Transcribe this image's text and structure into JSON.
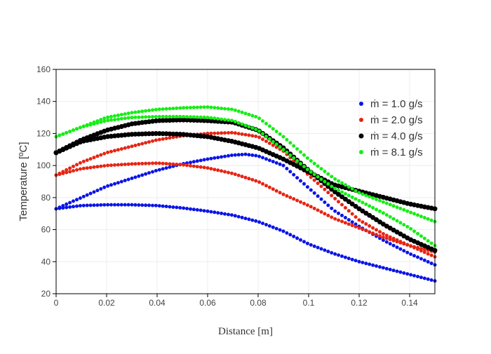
{
  "chart_data": {
    "type": "scatter",
    "title": "",
    "xlabel": "Distance [m]",
    "ylabel": "Temperature [ºC]",
    "xlim": [
      0,
      0.15
    ],
    "ylim": [
      20,
      160
    ],
    "x_ticks": [
      0,
      0.02,
      0.04,
      0.06,
      0.08,
      0.1,
      0.12,
      0.14
    ],
    "x_tick_labels": [
      "0",
      "0.02",
      "0.04",
      "0.06",
      "0.08",
      "0.1",
      "0.12",
      "0.14"
    ],
    "y_ticks": [
      20,
      40,
      60,
      80,
      100,
      120,
      140,
      160
    ],
    "y_tick_labels": [
      "20",
      "40",
      "60",
      "80",
      "100",
      "120",
      "140",
      "160"
    ],
    "grid": true,
    "legend_position": "top-right",
    "series": [
      {
        "name": "ṁ = 1.0 g/s",
        "color": "#0a14e6",
        "marker_size": 5,
        "curves": [
          [
            [
              0,
              73
            ],
            [
              0.01,
              75
            ],
            [
              0.02,
              75.5
            ],
            [
              0.03,
              75.5
            ],
            [
              0.04,
              75
            ],
            [
              0.05,
              73.5
            ],
            [
              0.06,
              71.5
            ],
            [
              0.07,
              69
            ],
            [
              0.08,
              65
            ],
            [
              0.09,
              59
            ],
            [
              0.1,
              51
            ],
            [
              0.11,
              45
            ],
            [
              0.12,
              40
            ],
            [
              0.13,
              36
            ],
            [
              0.14,
              32
            ],
            [
              0.15,
              28
            ]
          ],
          [
            [
              0,
              73
            ],
            [
              0.01,
              80
            ],
            [
              0.02,
              87
            ],
            [
              0.03,
              92
            ],
            [
              0.04,
              97
            ],
            [
              0.05,
              101
            ],
            [
              0.06,
              104
            ],
            [
              0.07,
              106.5
            ],
            [
              0.075,
              107
            ],
            [
              0.08,
              106
            ],
            [
              0.09,
              100
            ],
            [
              0.1,
              86
            ],
            [
              0.11,
              72
            ],
            [
              0.12,
              62
            ],
            [
              0.13,
              53
            ],
            [
              0.14,
              45
            ],
            [
              0.15,
              38
            ]
          ]
        ]
      },
      {
        "name": "ṁ = 2.0 g/s",
        "color": "#e62412",
        "marker_size": 5,
        "curves": [
          [
            [
              0,
              94
            ],
            [
              0.01,
              98
            ],
            [
              0.02,
              100
            ],
            [
              0.03,
              101
            ],
            [
              0.04,
              101.5
            ],
            [
              0.05,
              100.5
            ],
            [
              0.06,
              98.5
            ],
            [
              0.07,
              95
            ],
            [
              0.08,
              90
            ],
            [
              0.09,
              82
            ],
            [
              0.1,
              75
            ],
            [
              0.11,
              67
            ],
            [
              0.12,
              61
            ],
            [
              0.13,
              55
            ],
            [
              0.14,
              50
            ],
            [
              0.15,
              46
            ]
          ],
          [
            [
              0,
              94
            ],
            [
              0.01,
              102
            ],
            [
              0.02,
              108
            ],
            [
              0.03,
              112
            ],
            [
              0.04,
              116
            ],
            [
              0.05,
              118.5
            ],
            [
              0.06,
              120
            ],
            [
              0.07,
              120.5
            ],
            [
              0.08,
              118
            ],
            [
              0.09,
              109
            ],
            [
              0.1,
              94
            ],
            [
              0.11,
              80
            ],
            [
              0.12,
              66
            ],
            [
              0.13,
              57
            ],
            [
              0.14,
              50
            ],
            [
              0.15,
              43
            ]
          ]
        ]
      },
      {
        "name": "ṁ = 4.0 g/s",
        "color": "#000000",
        "marker_size": 7,
        "curves": [
          [
            [
              0,
              108
            ],
            [
              0.01,
              115
            ],
            [
              0.02,
              118
            ],
            [
              0.03,
              119.5
            ],
            [
              0.04,
              120
            ],
            [
              0.05,
              119.5
            ],
            [
              0.06,
              118
            ],
            [
              0.07,
              115
            ],
            [
              0.08,
              111
            ],
            [
              0.09,
              104
            ],
            [
              0.1,
              96
            ],
            [
              0.11,
              88
            ],
            [
              0.12,
              84
            ],
            [
              0.13,
              80
            ],
            [
              0.14,
              76
            ],
            [
              0.15,
              73
            ]
          ],
          [
            [
              0,
              108
            ],
            [
              0.01,
              116
            ],
            [
              0.02,
              122
            ],
            [
              0.03,
              126
            ],
            [
              0.04,
              128
            ],
            [
              0.05,
              128.5
            ],
            [
              0.06,
              128
            ],
            [
              0.07,
              127
            ],
            [
              0.08,
              122
            ],
            [
              0.09,
              111
            ],
            [
              0.1,
              97
            ],
            [
              0.11,
              84
            ],
            [
              0.12,
              73
            ],
            [
              0.13,
              63
            ],
            [
              0.14,
              54
            ],
            [
              0.15,
              47
            ]
          ]
        ]
      },
      {
        "name": "ṁ = 8.1 g/s",
        "color": "#14ee14",
        "marker_size": 5,
        "curves": [
          [
            [
              0,
              118
            ],
            [
              0.01,
              124
            ],
            [
              0.02,
              128
            ],
            [
              0.03,
              130
            ],
            [
              0.04,
              130.5
            ],
            [
              0.05,
              130.5
            ],
            [
              0.06,
              130
            ],
            [
              0.07,
              128
            ],
            [
              0.08,
              122
            ],
            [
              0.09,
              110
            ],
            [
              0.1,
              97
            ],
            [
              0.11,
              86
            ],
            [
              0.12,
              78
            ],
            [
              0.13,
              70
            ],
            [
              0.14,
              61
            ],
            [
              0.15,
              50
            ]
          ],
          [
            [
              0,
              118
            ],
            [
              0.01,
              124
            ],
            [
              0.02,
              130
            ],
            [
              0.03,
              133
            ],
            [
              0.04,
              135
            ],
            [
              0.05,
              136
            ],
            [
              0.06,
              136.5
            ],
            [
              0.07,
              135
            ],
            [
              0.08,
              130
            ],
            [
              0.09,
              118
            ],
            [
              0.1,
              104
            ],
            [
              0.11,
              92
            ],
            [
              0.12,
              83
            ],
            [
              0.13,
              77
            ],
            [
              0.14,
              71
            ],
            [
              0.15,
              65
            ]
          ]
        ]
      }
    ]
  }
}
